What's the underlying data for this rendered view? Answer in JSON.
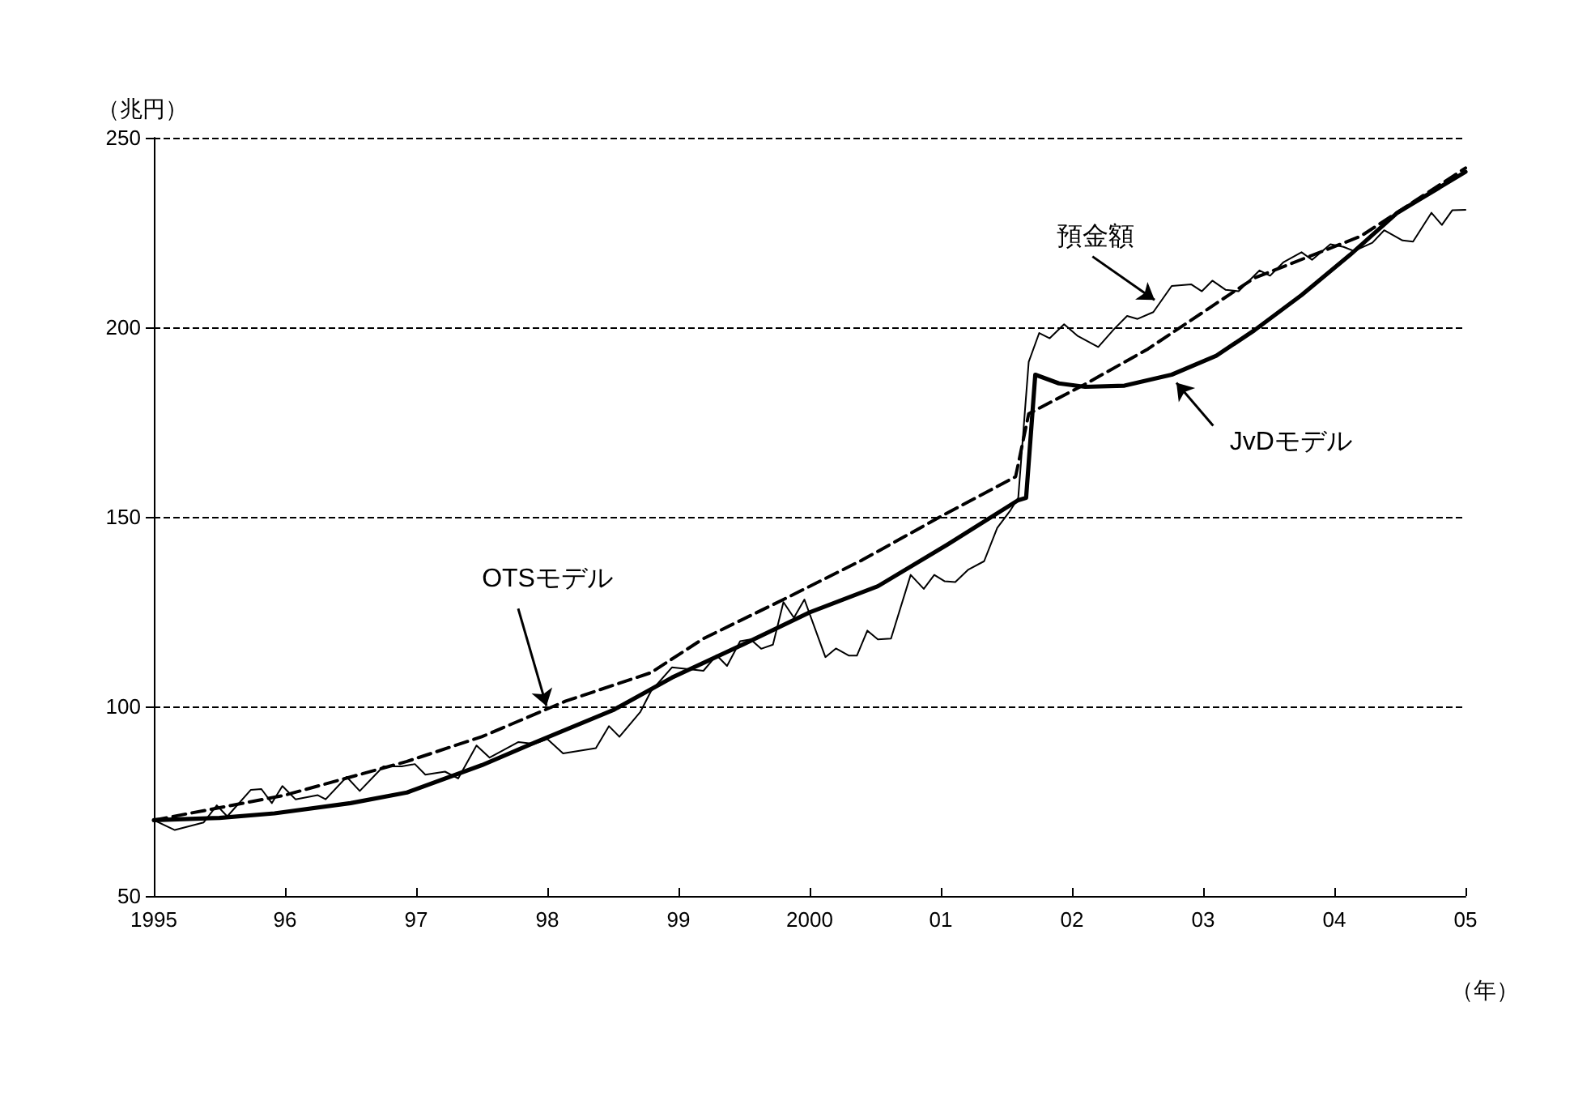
{
  "chart_data": {
    "type": "line",
    "ylabel": "（兆円）",
    "xlabel": "（年）",
    "xlim": [
      1995,
      2005
    ],
    "xticks": [
      {
        "value": 1995,
        "label": "1995"
      },
      {
        "value": 1996,
        "label": "96"
      },
      {
        "value": 1997,
        "label": "97"
      },
      {
        "value": 1998,
        "label": "98"
      },
      {
        "value": 1999,
        "label": "99"
      },
      {
        "value": 2000,
        "label": "2000"
      },
      {
        "value": 2001,
        "label": "01"
      },
      {
        "value": 2002,
        "label": "02"
      },
      {
        "value": 2003,
        "label": "03"
      },
      {
        "value": 2004,
        "label": "04"
      },
      {
        "value": 2005,
        "label": "05"
      }
    ],
    "ylim": [
      50,
      250
    ],
    "yticks": [
      50,
      100,
      150,
      200,
      250
    ],
    "grid": "y",
    "marker": "none",
    "series": [
      {
        "color": "#000000",
        "line_style": "solid",
        "x": [
          1995,
          1995.16,
          1995.38,
          1995.48,
          1995.56,
          1995.74,
          1995.82,
          1995.9,
          1995.98,
          1996.08,
          1996.25,
          1996.31,
          1996.47,
          1996.57,
          1996.75,
          1996.89,
          1996.99,
          1997.07,
          1997.22,
          1997.32,
          1997.46,
          1997.56,
          1997.78,
          1997.9,
          1998,
          1998.12,
          1998.37,
          1998.47,
          1998.55,
          1998.71,
          1998.79,
          1998.95,
          1999.19,
          1999.29,
          1999.37,
          1999.47,
          1999.55,
          1999.63,
          1999.72,
          1999.8,
          1999.88,
          1999.96,
          2000.12,
          2000.2,
          2000.3,
          2000.36,
          2000.44,
          2000.52,
          2000.62,
          2000.77,
          2000.87,
          2000.95,
          2001.03,
          2001.11,
          2001.21,
          2001.33,
          2001.43,
          2001.53,
          2001.59,
          2001.67,
          2001.75,
          2001.83,
          2001.94,
          2002.04,
          2002.2,
          2002.32,
          2002.42,
          2002.5,
          2002.62,
          2002.76,
          2002.91,
          2002.99,
          2003.07,
          2003.17,
          2003.27,
          2003.43,
          2003.51,
          2003.61,
          2003.75,
          2003.83,
          2003.97,
          2004.07,
          2004.15,
          2004.29,
          2004.38,
          2004.52,
          2004.6,
          2004.74,
          2004.82,
          2004.9,
          2005
        ],
        "values": [
          70,
          67.4,
          69.4,
          73.9,
          71,
          78,
          78.2,
          74.5,
          79,
          75.5,
          76.6,
          75.5,
          81.4,
          77.7,
          84.2,
          84.2,
          84.8,
          82,
          82.8,
          81,
          89.7,
          86.5,
          90.6,
          90.1,
          91.4,
          87.6,
          89,
          94.8,
          92,
          98.6,
          104,
          110.3,
          109.4,
          113.5,
          110.7,
          117.2,
          117.7,
          115.2,
          116.3,
          127.5,
          123.4,
          128.2,
          113,
          115.3,
          113.4,
          113.4,
          120,
          117.7,
          117.9,
          134.7,
          131,
          134.7,
          133,
          132.8,
          136.1,
          138.3,
          147.1,
          151.7,
          155,
          190.9,
          198.5,
          197.1,
          200.8,
          197.8,
          194.8,
          199.5,
          203,
          202.2,
          204,
          210.9,
          211.3,
          209.5,
          212.3,
          209.9,
          209.5,
          215,
          213.6,
          217.1,
          219.8,
          217.8,
          221.9,
          221.2,
          220.1,
          222.3,
          225.6,
          222.9,
          222.6,
          230.2,
          227,
          230.9,
          231
        ]
      },
      {
        "color": "#000000",
        "line_style": "solid",
        "x": [
          1995,
          1995.5,
          1995.92,
          1996.5,
          1996.93,
          1997.5,
          1997.9,
          1998.5,
          1998.95,
          1999.5,
          2000,
          2000.52,
          2001.05,
          2001.59,
          2001.65,
          2001.72,
          2001.9,
          2002.1,
          2002.4,
          2002.76,
          2003.1,
          2003.39,
          2003.75,
          2004.12,
          2004.48,
          2005
        ],
        "values": [
          70,
          70.6,
          71.8,
          74.5,
          77.3,
          84.5,
          90.4,
          99,
          107.6,
          116.5,
          124.8,
          131.7,
          142.7,
          154.4,
          155,
          187.5,
          185.2,
          184.3,
          184.6,
          187.5,
          192.5,
          199.2,
          208.5,
          219.1,
          230.2,
          241
        ]
      },
      {
        "color": "#000000",
        "line_style": "dashed",
        "x": [
          1995,
          1996,
          1996.93,
          1997.5,
          1998.14,
          1998.79,
          1999.19,
          1999.8,
          2000.4,
          2001.01,
          2001.57,
          2001.67,
          2002.1,
          2002.58,
          2003.39,
          2004.2,
          2005
        ],
        "values": [
          70,
          76.6,
          85.5,
          92,
          101.4,
          108.9,
          117.9,
          128.2,
          138.6,
          150.3,
          160.6,
          177.2,
          185,
          194.3,
          213,
          224,
          242
        ]
      }
    ],
    "annotations": [
      {
        "text": "OTSモデル",
        "x": 1998,
        "y": 99.3
      },
      {
        "text": "預金額",
        "x": 2002.65,
        "y": 206.7
      },
      {
        "text": "JvDモデル",
        "x": 2002.78,
        "y": 186
      }
    ]
  }
}
